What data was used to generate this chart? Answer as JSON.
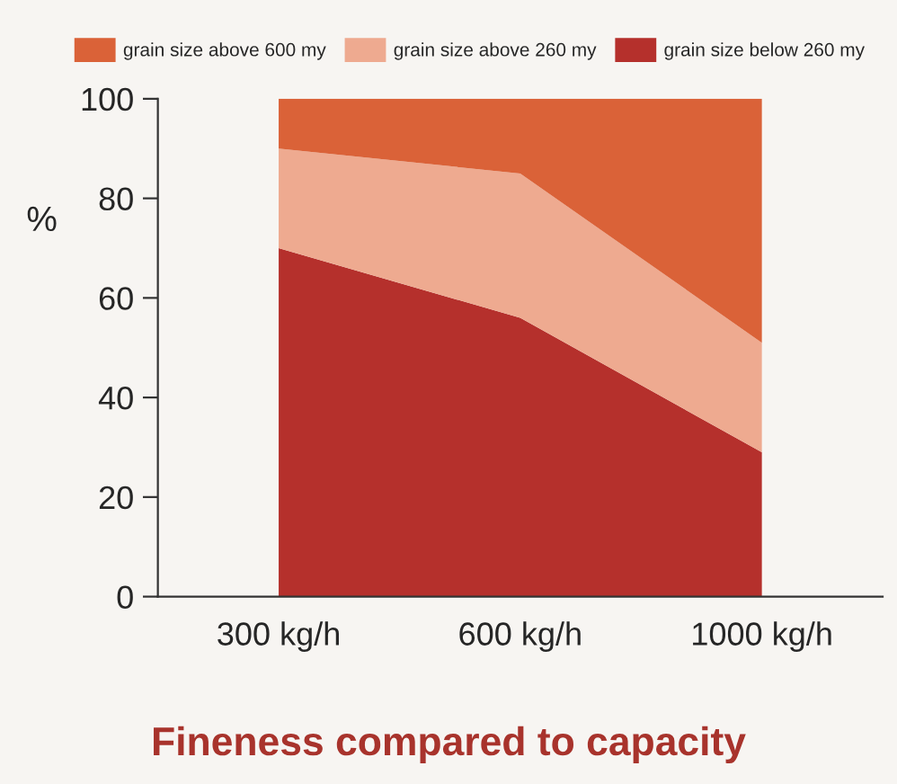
{
  "chart_data": {
    "type": "area",
    "title": "Fineness compared to capacity",
    "ylabel": "%",
    "categories": [
      "300 kg/h",
      "600 kg/h",
      "1000 kg/h"
    ],
    "stacked": true,
    "series": [
      {
        "name": "grain size below 260 my",
        "color": "#b5302c",
        "values": [
          70,
          56,
          29
        ]
      },
      {
        "name": "grain size above 260 my",
        "color": "#eeaa90",
        "values": [
          20,
          29,
          22
        ]
      },
      {
        "name": "grain size above 600 my",
        "color": "#da6238",
        "values": [
          10,
          15,
          49
        ]
      }
    ],
    "ylim": [
      0,
      100
    ],
    "yticks": [
      0,
      20,
      40,
      60,
      80,
      100
    ],
    "grid": false,
    "legend": "top"
  }
}
